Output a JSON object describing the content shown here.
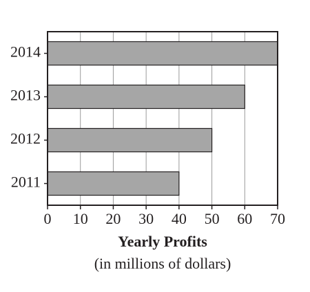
{
  "chart_data": {
    "type": "bar",
    "orientation": "horizontal",
    "categories": [
      "2011",
      "2012",
      "2013",
      "2014"
    ],
    "values": [
      40,
      50,
      60,
      70
    ],
    "color": "#a6a6a6",
    "xlim": [
      0,
      70
    ],
    "xticks": [
      0,
      10,
      20,
      30,
      40,
      50,
      60,
      70
    ],
    "grid": true,
    "x_label": "Yearly Profits",
    "x_label_note": "(in millions of dollars)"
  }
}
